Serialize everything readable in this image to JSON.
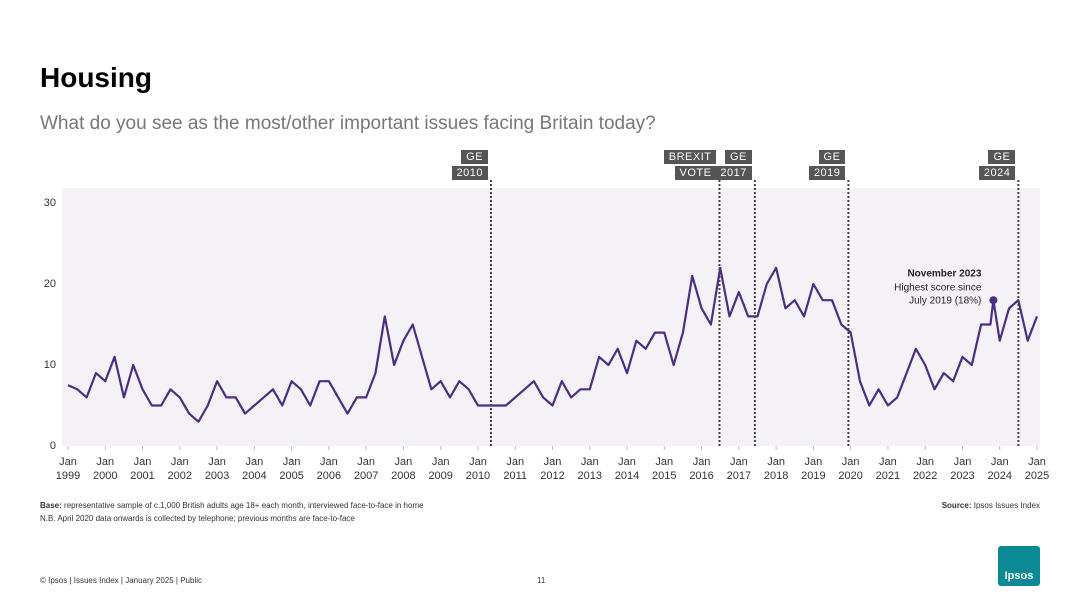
{
  "chart_data": {
    "type": "line",
    "title": "Housing",
    "subtitle": "What do you see as the most/other important issues facing Britain today?",
    "x": [
      1999,
      1999.25,
      1999.5,
      1999.75,
      2000,
      2000.25,
      2000.5,
      2000.75,
      2001,
      2001.25,
      2001.5,
      2001.75,
      2002,
      2002.25,
      2002.5,
      2002.75,
      2003,
      2003.25,
      2003.5,
      2003.75,
      2004,
      2004.25,
      2004.5,
      2004.75,
      2005,
      2005.25,
      2005.5,
      2005.75,
      2006,
      2006.25,
      2006.5,
      2006.75,
      2007,
      2007.25,
      2007.5,
      2007.75,
      2008,
      2008.25,
      2008.5,
      2008.75,
      2009,
      2009.25,
      2009.5,
      2009.75,
      2010,
      2010.25,
      2010.5,
      2010.75,
      2011,
      2011.25,
      2011.5,
      2011.75,
      2012,
      2012.25,
      2012.5,
      2012.75,
      2013,
      2013.25,
      2013.5,
      2013.75,
      2014,
      2014.25,
      2014.5,
      2014.75,
      2015,
      2015.25,
      2015.5,
      2015.75,
      2016,
      2016.25,
      2016.5,
      2016.75,
      2017,
      2017.25,
      2017.5,
      2017.75,
      2018,
      2018.25,
      2018.5,
      2018.75,
      2019,
      2019.25,
      2019.5,
      2019.75,
      2020,
      2020.25,
      2020.5,
      2020.75,
      2021,
      2021.25,
      2021.5,
      2021.75,
      2022,
      2022.25,
      2022.5,
      2022.75,
      2023,
      2023.25,
      2023.5,
      2023.75,
      2023.83,
      2024,
      2024.25,
      2024.5,
      2024.75,
      2025
    ],
    "series": [
      {
        "name": "Housing",
        "color": "#4b2e83",
        "values": [
          7.5,
          7,
          6,
          9,
          8,
          11,
          6,
          10,
          7,
          5,
          5,
          7,
          6,
          4,
          3,
          5,
          8,
          6,
          6,
          4,
          5,
          6,
          7,
          5,
          8,
          7,
          5,
          8,
          8,
          6,
          4,
          6,
          6,
          9,
          16,
          10,
          13,
          15,
          11,
          7,
          8,
          6,
          8,
          7,
          5,
          5,
          5,
          5,
          6,
          7,
          8,
          6,
          5,
          8,
          6,
          7,
          7,
          11,
          10,
          12,
          9,
          13,
          12,
          14,
          14,
          10,
          14,
          21,
          17,
          15,
          22,
          16,
          19,
          16,
          16,
          20,
          22,
          17,
          18,
          16,
          20,
          18,
          18,
          15,
          14,
          8,
          5,
          7,
          5,
          6,
          9,
          12,
          10,
          7,
          9,
          8,
          11,
          10,
          15,
          15,
          18,
          13,
          17,
          18,
          13,
          16
        ]
      }
    ],
    "xlim": [
      1999,
      2025
    ],
    "xticks": [
      {
        "value": 1999,
        "label": "Jan 1999"
      },
      {
        "value": 2000,
        "label": "Jan 2000"
      },
      {
        "value": 2001,
        "label": "Jan 2001"
      },
      {
        "value": 2002,
        "label": "Jan 2002"
      },
      {
        "value": 2003,
        "label": "Jan 2003"
      },
      {
        "value": 2004,
        "label": "Jan 2004"
      },
      {
        "value": 2005,
        "label": "Jan 2005"
      },
      {
        "value": 2006,
        "label": "Jan 2006"
      },
      {
        "value": 2007,
        "label": "Jan 2007"
      },
      {
        "value": 2008,
        "label": "Jan 2008"
      },
      {
        "value": 2009,
        "label": "Jan 2009"
      },
      {
        "value": 2010,
        "label": "Jan 2010"
      },
      {
        "value": 2011,
        "label": "Jan 2011"
      },
      {
        "value": 2012,
        "label": "Jan 2012"
      },
      {
        "value": 2013,
        "label": "Jan 2013"
      },
      {
        "value": 2014,
        "label": "Jan 2014"
      },
      {
        "value": 2015,
        "label": "Jan 2015"
      },
      {
        "value": 2016,
        "label": "Jan 2016"
      },
      {
        "value": 2017,
        "label": "Jan 2017"
      },
      {
        "value": 2018,
        "label": "Jan 2018"
      },
      {
        "value": 2019,
        "label": "Jan 2019"
      },
      {
        "value": 2020,
        "label": "Jan 2020"
      },
      {
        "value": 2021,
        "label": "Jan 2021"
      },
      {
        "value": 2022,
        "label": "Jan 2022"
      },
      {
        "value": 2023,
        "label": "Jan 2023"
      },
      {
        "value": 2024,
        "label": "Jan 2024"
      },
      {
        "value": 2025,
        "label": "Jan 2025"
      }
    ],
    "ylim": [
      0,
      30
    ],
    "yticks": [
      0,
      10,
      20,
      30
    ],
    "events": [
      {
        "x": 2010.35,
        "label": [
          "GE",
          "2010"
        ]
      },
      {
        "x": 2016.48,
        "label": [
          "BREXIT",
          "VOTE"
        ]
      },
      {
        "x": 2017.43,
        "label": [
          "GE",
          "2017"
        ]
      },
      {
        "x": 2019.94,
        "label": [
          "GE",
          "2019"
        ]
      },
      {
        "x": 2024.5,
        "label": [
          "GE",
          "2024"
        ]
      }
    ],
    "annotation": {
      "title": "November 2023",
      "lines": [
        "Highest score since",
        "July 2019 (18%)"
      ],
      "point": 100
    },
    "base_label": "Base:",
    "base_text": "representative sample of c.1,000 British adults age 18+ each month, interviewed face-to-face in home",
    "note": "N.B. April 2020 data onwards is collected by telephone; previous months are face-to-face",
    "source_label": "Source:",
    "source_text": "Ipsos Issues Index",
    "footer": "© Ipsos | Issues Index | January 2025 | Public",
    "page": "11",
    "logo": "Ipsos"
  }
}
